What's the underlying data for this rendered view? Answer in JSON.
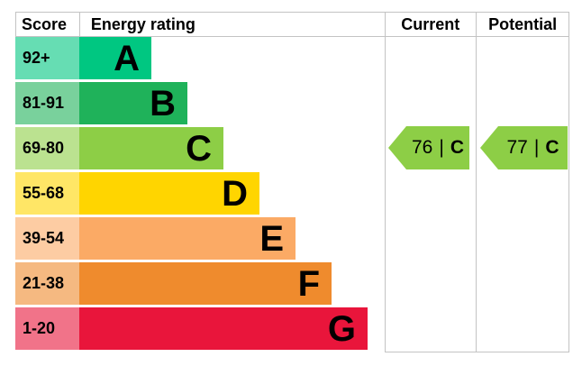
{
  "header": {
    "score": "Score",
    "energy_rating": "Energy rating",
    "current": "Current",
    "potential": "Potential"
  },
  "chart_data": {
    "type": "bar",
    "title": "Energy rating",
    "categories": [
      "A",
      "B",
      "C",
      "D",
      "E",
      "F",
      "G"
    ],
    "bands": [
      {
        "letter": "A",
        "score_range": "92+",
        "color": "#00c781",
        "tint": "#66ddb3"
      },
      {
        "letter": "B",
        "score_range": "81-91",
        "color": "#1fb25a",
        "tint": "#79d19c"
      },
      {
        "letter": "C",
        "score_range": "69-80",
        "color": "#8dce46",
        "tint": "#bbe290"
      },
      {
        "letter": "D",
        "score_range": "55-68",
        "color": "#ffd500",
        "tint": "#ffe666"
      },
      {
        "letter": "E",
        "score_range": "39-54",
        "color": "#fbaa65",
        "tint": "#fdcca3"
      },
      {
        "letter": "F",
        "score_range": "21-38",
        "color": "#ef8b2d",
        "tint": "#f5b981"
      },
      {
        "letter": "G",
        "score_range": "1-20",
        "color": "#e9153b",
        "tint": "#f17389"
      }
    ],
    "current": {
      "value": "76",
      "separator": "|",
      "band": "C",
      "band_index": 2,
      "arrow_color": "#8dce46"
    },
    "potential": {
      "value": "77",
      "separator": "|",
      "band": "C",
      "band_index": 2,
      "arrow_color": "#8dce46"
    },
    "grid_color": "#c3c3c3"
  }
}
